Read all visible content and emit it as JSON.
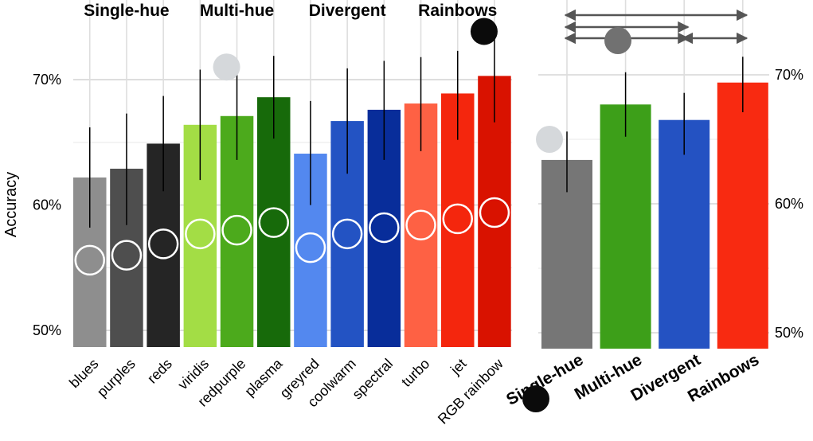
{
  "chart_data": [
    {
      "type": "bar",
      "ylabel": "Accuracy",
      "yticks": [
        "50%",
        "60%",
        "70%"
      ],
      "ylim": [
        0.488,
        0.75
      ],
      "grid": true,
      "groups": [
        "Single-hue",
        "Multi-hue",
        "Divergent",
        "Rainbows"
      ],
      "bars": [
        {
          "label": "blues",
          "group": "Single-hue",
          "value": 0.622,
          "ci": [
            0.582,
            0.662
          ],
          "dot": 0.556,
          "color": "#8e8e8e"
        },
        {
          "label": "purples",
          "group": "Single-hue",
          "value": 0.629,
          "ci": [
            0.584,
            0.673
          ],
          "dot": 0.56,
          "color": "#4e4e4e"
        },
        {
          "label": "reds",
          "group": "Single-hue",
          "value": 0.649,
          "ci": [
            0.611,
            0.687
          ],
          "dot": 0.569,
          "color": "#252525"
        },
        {
          "label": "viridis",
          "group": "Multi-hue",
          "value": 0.664,
          "ci": [
            0.62,
            0.708
          ],
          "dot": 0.577,
          "color": "#a3dd45"
        },
        {
          "label": "redpurple",
          "group": "Multi-hue",
          "value": 0.671,
          "ci": [
            0.636,
            0.706
          ],
          "dot": 0.58,
          "color": "#4caa1c"
        },
        {
          "label": "plasma",
          "group": "Multi-hue",
          "value": 0.686,
          "ci": [
            0.653,
            0.719
          ],
          "dot": 0.586,
          "color": "#176a0a"
        },
        {
          "label": "greyred",
          "group": "Divergent",
          "value": 0.641,
          "ci": [
            0.6,
            0.683
          ],
          "dot": 0.566,
          "color": "#5388ef"
        },
        {
          "label": "coolwarm",
          "group": "Divergent",
          "value": 0.667,
          "ci": [
            0.625,
            0.709
          ],
          "dot": 0.577,
          "color": "#2353c3"
        },
        {
          "label": "spectral",
          "group": "Divergent",
          "value": 0.676,
          "ci": [
            0.636,
            0.715
          ],
          "dot": 0.582,
          "color": "#082d9a"
        },
        {
          "label": "turbo",
          "group": "Rainbows",
          "value": 0.681,
          "ci": [
            0.643,
            0.718
          ],
          "dot": 0.584,
          "color": "#fe6144"
        },
        {
          "label": "jet",
          "group": "Rainbows",
          "value": 0.689,
          "ci": [
            0.652,
            0.723
          ],
          "dot": 0.589,
          "color": "#f4260d"
        },
        {
          "label": "RGB rainbow",
          "group": "Rainbows",
          "value": 0.703,
          "ci": [
            0.666,
            0.74
          ],
          "dot": 0.594,
          "color": "#d91200"
        }
      ],
      "annotation_dots": [
        {
          "near": "redpurple",
          "value": 0.705,
          "color": "#d5d8db"
        },
        {
          "near": "RGB rainbow",
          "value": 0.755,
          "color": "#0b0b0b"
        }
      ]
    },
    {
      "type": "bar",
      "yticks": [
        "50%",
        "60%",
        "70%"
      ],
      "ylim": [
        0.488,
        0.75
      ],
      "grid": true,
      "categories": [
        "Single-hue",
        "Multi-hue",
        "Divergent",
        "Rainbows"
      ],
      "values": [
        0.634,
        0.677,
        0.665,
        0.694
      ],
      "ci": [
        [
          0.609,
          0.656
        ],
        [
          0.652,
          0.702
        ],
        [
          0.638,
          0.686
        ],
        [
          0.671,
          0.714
        ]
      ],
      "colors": [
        "#767676",
        "#3d9f19",
        "#2452c2",
        "#f82a11"
      ],
      "comparisons": [
        {
          "from": "Single-hue",
          "to": "Rainbows"
        },
        {
          "from": "Single-hue",
          "to": "Divergent"
        },
        {
          "from": "Single-hue",
          "to": "Divergent"
        },
        {
          "from": "Divergent",
          "to": "Rainbows"
        }
      ],
      "annotation_dots": [
        {
          "near": "Single-hue",
          "value": 0.652,
          "color": "#d5d8db"
        },
        {
          "near": "Multi-hue",
          "value": 0.725,
          "color": "#717171"
        },
        {
          "near": "Single-hue",
          "value": 0.461,
          "color": "#0b0b0b"
        }
      ]
    }
  ]
}
